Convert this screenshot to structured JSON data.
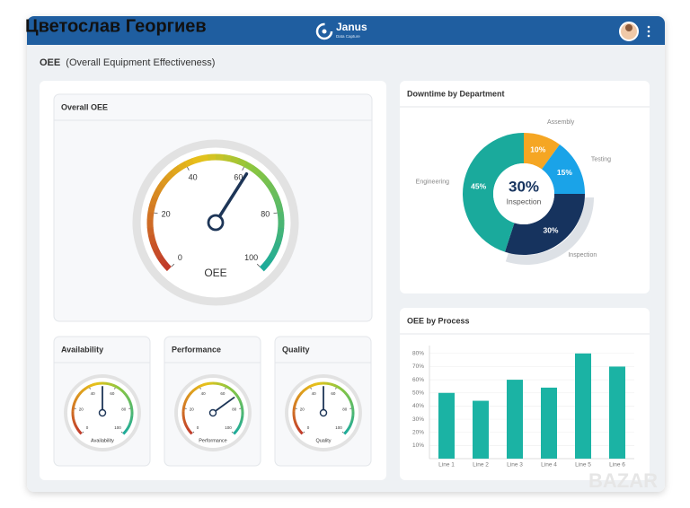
{
  "header": {
    "overlay_name": "Цветослав Георгиев",
    "brand": "Janus",
    "brand_sub": "Data Capture"
  },
  "page_title": {
    "bold": "OEE",
    "rest": "(Overall Equipment Effectiveness)"
  },
  "watermark": "BAZAR",
  "chart_data": [
    {
      "type": "gauge",
      "title": "Overall OEE",
      "label": "OEE",
      "value": 62,
      "ylim": [
        0,
        100
      ],
      "yticks": [
        0,
        20,
        40,
        60,
        80,
        100
      ]
    },
    {
      "type": "gauge",
      "title": "Availability",
      "label": "Availability",
      "value": 50,
      "ylim": [
        0,
        100
      ],
      "yticks": [
        0,
        20,
        40,
        60,
        80,
        100
      ]
    },
    {
      "type": "gauge",
      "title": "Performance",
      "label": "Performance",
      "value": 70,
      "ylim": [
        0,
        100
      ],
      "yticks": [
        0,
        20,
        40,
        60,
        80,
        100
      ]
    },
    {
      "type": "gauge",
      "title": "Quality",
      "label": "Quality",
      "value": 50,
      "ylim": [
        0,
        100
      ],
      "yticks": [
        0,
        20,
        40,
        60,
        80,
        100
      ]
    },
    {
      "type": "donut",
      "title": "Downtime by Department",
      "categories": [
        "Assembly",
        "Testing",
        "Inspection",
        "Engineering"
      ],
      "values": [
        10,
        15,
        30,
        45
      ],
      "value_labels": [
        "10%",
        "15%",
        "30%",
        "45%"
      ],
      "colors": [
        "#f5a623",
        "#1aa3e8",
        "#16335e",
        "#1aaa9c"
      ],
      "highlight": 2
    },
    {
      "type": "bar",
      "title": "OEE by Process",
      "categories": [
        "Line 1",
        "Line 2",
        "Line 3",
        "Line 4",
        "Line 5",
        "Line 6"
      ],
      "values": [
        50,
        44,
        60,
        54,
        80,
        70
      ],
      "color": "#1bb3a4",
      "ylim": [
        0,
        86
      ],
      "yticks": [
        {
          "value": 10,
          "label": "10%"
        },
        {
          "value": 20,
          "label": "20%"
        },
        {
          "value": 30,
          "label": "30%"
        },
        {
          "value": 40,
          "label": "40%"
        },
        {
          "value": 50,
          "label": "50%"
        },
        {
          "value": 60,
          "label": "60%"
        },
        {
          "value": 70,
          "label": "70%"
        },
        {
          "value": 80,
          "label": "80%"
        }
      ],
      "grid": true
    }
  ]
}
